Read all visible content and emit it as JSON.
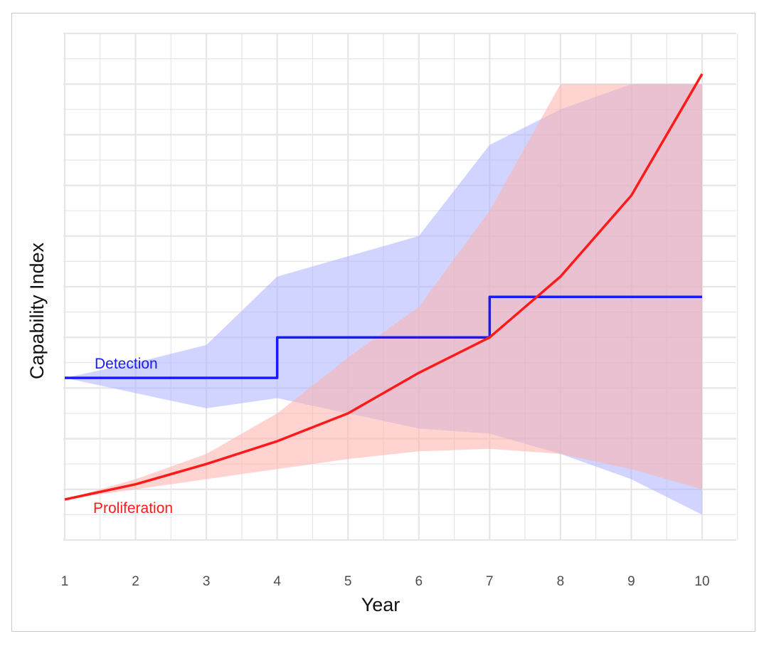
{
  "colors": {
    "detection": "#1a1aff",
    "proliferation": "#ff1a1a",
    "detection_band": "#aab0ff",
    "proliferation_band": "#ffb0aa",
    "grid": "#e6e6e6"
  },
  "chart_data": {
    "type": "line",
    "title": "",
    "xlabel": "Year",
    "ylabel": "Capability Index",
    "x": [
      1,
      2,
      3,
      4,
      5,
      6,
      7,
      8,
      9,
      10
    ],
    "x_tick_labels": [
      "1",
      "2",
      "3",
      "4",
      "5",
      "6",
      "7",
      "8",
      "9",
      "10"
    ],
    "xlim": [
      1,
      10
    ],
    "ylim": [
      0,
      10
    ],
    "y_ticks_shown": false,
    "grid": true,
    "series": [
      {
        "name": "Detection",
        "style": "step",
        "color": "#1a1aff",
        "values": [
          3.2,
          3.2,
          3.2,
          4.0,
          4.0,
          4.0,
          4.8,
          4.8,
          4.8,
          4.8
        ],
        "band_lower": [
          3.2,
          2.9,
          2.6,
          2.8,
          2.5,
          2.2,
          2.1,
          1.7,
          1.2,
          0.5
        ],
        "band_upper": [
          3.2,
          3.5,
          3.85,
          5.2,
          5.6,
          6.0,
          7.8,
          8.5,
          9.0,
          9.0
        ]
      },
      {
        "name": "Proliferation",
        "style": "line",
        "color": "#ff1a1a",
        "values": [
          0.8,
          1.1,
          1.5,
          1.95,
          2.5,
          3.3,
          4.0,
          5.2,
          6.8,
          9.2
        ],
        "band_lower": [
          0.8,
          1.0,
          1.2,
          1.4,
          1.6,
          1.75,
          1.8,
          1.7,
          1.4,
          1.0
        ],
        "band_upper": [
          0.8,
          1.2,
          1.7,
          2.5,
          3.6,
          4.6,
          6.5,
          9.0,
          9.0,
          9.0
        ]
      }
    ]
  }
}
